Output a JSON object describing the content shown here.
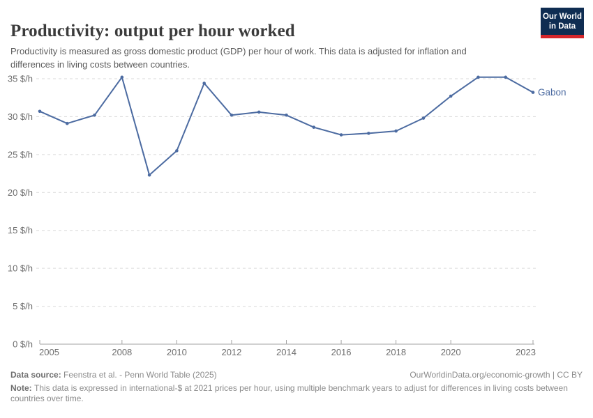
{
  "header": {
    "title": "Productivity: output per hour worked",
    "subtitle": "Productivity is measured as gross domestic product (GDP) per hour of work. This data is adjusted for inflation and differences in living costs between countries.",
    "logo": {
      "line1": "Our World",
      "line2": "in Data",
      "bg_color": "#0f2d52",
      "accent_color": "#d5262b"
    }
  },
  "chart_data": {
    "type": "line",
    "title": "Productivity: output per hour worked",
    "xlabel": "",
    "ylabel": "",
    "unit_suffix": " $/h",
    "ylim": [
      0,
      35
    ],
    "ytick_step": 5,
    "grid": "horizontal dashed",
    "legend_position": "end-of-line label",
    "x": [
      2005,
      2006,
      2007,
      2008,
      2009,
      2010,
      2011,
      2012,
      2013,
      2014,
      2015,
      2016,
      2017,
      2018,
      2019,
      2020,
      2021,
      2022,
      2023
    ],
    "xticks": [
      2005,
      2008,
      2010,
      2012,
      2014,
      2016,
      2018,
      2020,
      2023
    ],
    "series": [
      {
        "name": "Gabon",
        "color": "#4c6ba1",
        "values": [
          30.7,
          29.1,
          30.2,
          35.2,
          22.3,
          25.5,
          34.4,
          30.2,
          30.6,
          30.2,
          28.6,
          27.6,
          27.8,
          28.1,
          29.8,
          32.7,
          35.2,
          35.2,
          33.2
        ]
      }
    ],
    "axis_color": "#a3a3a3",
    "gridline_color": "#dadada",
    "tick_label_color": "#6e6e6e"
  },
  "footer": {
    "datasource_label": "Data source:",
    "datasource_text": "Feenstra et al. - Penn World Table (2025)",
    "attribution": "OurWorldinData.org/economic-growth | CC BY",
    "note_label": "Note:",
    "note_text": "This data is expressed in international-$ at 2021 prices per hour, using multiple benchmark years to adjust for differences in living costs between countries over time."
  }
}
